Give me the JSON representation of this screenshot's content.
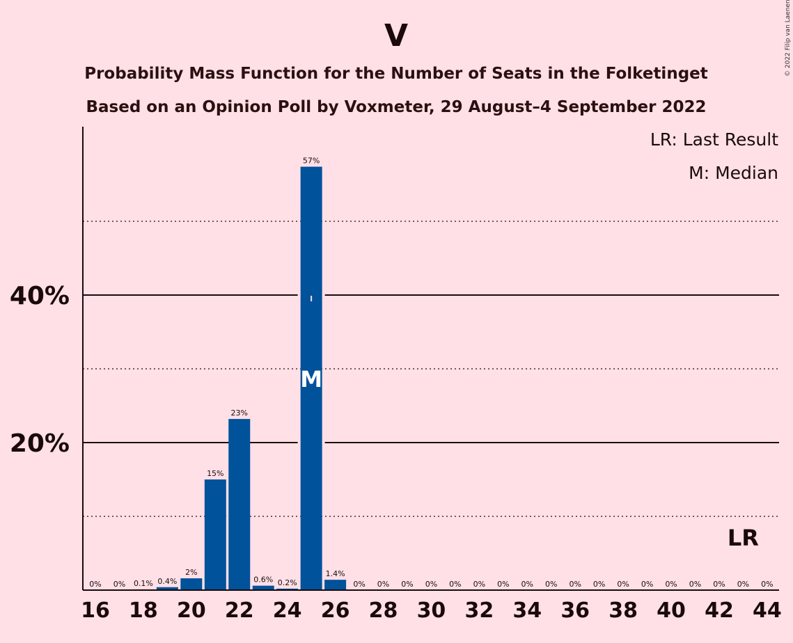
{
  "copyright": "© 2022 Filip van Laenen",
  "chart_data": {
    "type": "bar",
    "title": "V",
    "subtitle_lines": [
      "Probability Mass Function for the Number of Seats in the Folketinget",
      "Based on an Opinion Poll by Voxmeter, 29 August–4 September 2022"
    ],
    "legend": {
      "placement": "top-right",
      "entries": [
        "LR: Last Result",
        "M: Median"
      ]
    },
    "x": [
      16,
      17,
      18,
      19,
      20,
      21,
      22,
      23,
      24,
      25,
      26,
      27,
      28,
      29,
      30,
      31,
      32,
      33,
      34,
      35,
      36,
      37,
      38,
      39,
      40,
      41,
      42,
      43,
      44
    ],
    "values": [
      0,
      0,
      0.1,
      0.4,
      1.6,
      15,
      23.2,
      0.6,
      0.2,
      57.4,
      1.4,
      0,
      0,
      0,
      0,
      0,
      0,
      0,
      0,
      0,
      0,
      0,
      0,
      0,
      0,
      0,
      0,
      0,
      0
    ],
    "data_labels": [
      "0%",
      "0%",
      "0.1%",
      "0.4%",
      "2%",
      "15%",
      "23%",
      "0.6%",
      "0.2%",
      "57%",
      "1.4%",
      "0%",
      "0%",
      "0%",
      "0%",
      "0%",
      "0%",
      "0%",
      "0%",
      "0%",
      "0%",
      "0%",
      "0%",
      "0%",
      "0%",
      "0%",
      "0%",
      "0%",
      "0%"
    ],
    "x_tick_labels": [
      "16",
      "18",
      "20",
      "22",
      "24",
      "26",
      "28",
      "30",
      "32",
      "34",
      "36",
      "38",
      "40",
      "42",
      "44"
    ],
    "y_tick_labels": [
      "20%",
      "40%"
    ],
    "y_ticks": [
      20,
      40
    ],
    "y_dotted_gridlines": [
      10,
      30,
      50
    ],
    "ylim": [
      0,
      62.5
    ],
    "median_seat": 25,
    "median_marker": "M",
    "last_result_seat": 43,
    "last_result_marker": "LR",
    "bar_color": "#00529B",
    "background_color": "#FFE0E6"
  }
}
